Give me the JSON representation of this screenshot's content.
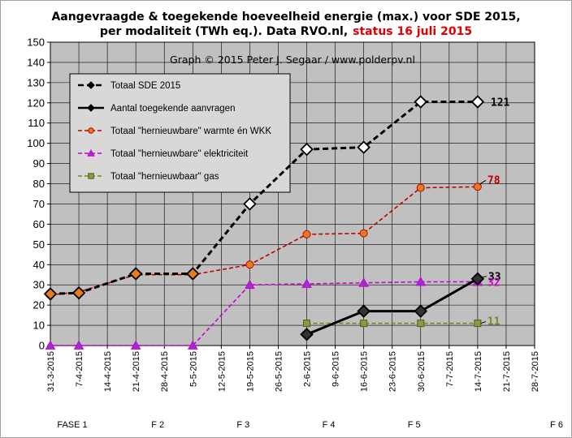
{
  "title": {
    "line1": "Aangevraagde & toegekende hoeveelheid energie (max.) voor SDE 2015,",
    "line2_black": "per modaliteit (TWh eq.). Data RVO.nl,",
    "line2_red": "status 16 juli 2015"
  },
  "credit": "Graph  © 2015  Peter J. Segaar / www.polderpv.nl",
  "phases": [
    "FASE 1",
    "F 2",
    "F 3",
    "F 4",
    "F 5",
    "F 6"
  ],
  "chart_data": {
    "type": "line",
    "title": "Aangevraagde & toegekende hoeveelheid energie (max.) voor SDE 2015, per modaliteit (TWh eq.). Data RVO.nl, status 16 juli 2015",
    "xlabel": "",
    "ylabel": "",
    "ylim": [
      0,
      150
    ],
    "y_ticks": [
      0,
      10,
      20,
      30,
      40,
      50,
      60,
      70,
      80,
      90,
      100,
      110,
      120,
      130,
      140,
      150
    ],
    "x_tick_labels": [
      "31-3-2015",
      "7-4-2015",
      "14-4-2015",
      "21-4-2015",
      "28-4-2015",
      "5-5-2015",
      "12-5-2015",
      "19-5-2015",
      "26-5-2015",
      "2-6-2015",
      "9-6-2015",
      "16-6-2015",
      "23-6-2015",
      "30-6-2015",
      "7-7-2015",
      "14-7-2015",
      "21-7-2015",
      "28-7-2015"
    ],
    "grid": true,
    "legend_position": "top-left",
    "series": [
      {
        "name": "Totaal SDE 2015",
        "color": "#000000",
        "marker": "diamond",
        "line": "dashed",
        "points": [
          {
            "x": "31-3-2015",
            "y": 25.5
          },
          {
            "x": "7-4-2015",
            "y": 26.0
          },
          {
            "x": "21-4-2015",
            "y": 35.5
          },
          {
            "x": "5-5-2015",
            "y": 35.5
          },
          {
            "x": "19-5-2015",
            "y": 70.0
          },
          {
            "x": "2-6-2015",
            "y": 97.0
          },
          {
            "x": "16-6-2015",
            "y": 98.0
          },
          {
            "x": "30-6-2015",
            "y": 120.5
          },
          {
            "x": "14-7-2015",
            "y": 120.5
          }
        ],
        "end_label": "121"
      },
      {
        "name": "Aantal toegekende aanvragen",
        "color": "#000000",
        "marker": "diamond",
        "line": "solid",
        "points": [
          {
            "x": "2-6-2015",
            "y": 5.5
          },
          {
            "x": "16-6-2015",
            "y": 17.0
          },
          {
            "x": "30-6-2015",
            "y": 17.0
          },
          {
            "x": "14-7-2015",
            "y": 33.0
          }
        ],
        "end_label": "33"
      },
      {
        "name": "Totaal \"hernieuwbare\" warmte én WKK",
        "color": "#c00000",
        "marker": "circle",
        "line": "dashed",
        "points": [
          {
            "x": "31-3-2015",
            "y": 25.0
          },
          {
            "x": "7-4-2015",
            "y": 26.5
          },
          {
            "x": "21-4-2015",
            "y": 35.0
          },
          {
            "x": "5-5-2015",
            "y": 35.0
          },
          {
            "x": "19-5-2015",
            "y": 40.0
          },
          {
            "x": "2-6-2015",
            "y": 55.0
          },
          {
            "x": "16-6-2015",
            "y": 55.5
          },
          {
            "x": "30-6-2015",
            "y": 78.0
          },
          {
            "x": "14-7-2015",
            "y": 78.5
          }
        ],
        "end_label": "78"
      },
      {
        "name": "Totaal \"hernieuwbare\" elektriciteit",
        "color": "#cc00cc",
        "marker": "triangle",
        "line": "dashed",
        "points": [
          {
            "x": "31-3-2015",
            "y": 0.0
          },
          {
            "x": "7-4-2015",
            "y": 0.0
          },
          {
            "x": "21-4-2015",
            "y": 0.0
          },
          {
            "x": "5-5-2015",
            "y": 0.0
          },
          {
            "x": "19-5-2015",
            "y": 30.0
          },
          {
            "x": "2-6-2015",
            "y": 30.5
          },
          {
            "x": "16-6-2015",
            "y": 31.0
          },
          {
            "x": "30-6-2015",
            "y": 31.5
          },
          {
            "x": "14-7-2015",
            "y": 31.5
          }
        ],
        "end_label": "32"
      },
      {
        "name": "Totaal \"hernieuwbaar\" gas",
        "color": "#6b8e23",
        "marker": "square",
        "line": "dashed",
        "points": [
          {
            "x": "2-6-2015",
            "y": 11.0
          },
          {
            "x": "16-6-2015",
            "y": 11.0
          },
          {
            "x": "30-6-2015",
            "y": 11.0
          },
          {
            "x": "14-7-2015",
            "y": 11.0
          }
        ],
        "end_label": "11"
      }
    ]
  }
}
